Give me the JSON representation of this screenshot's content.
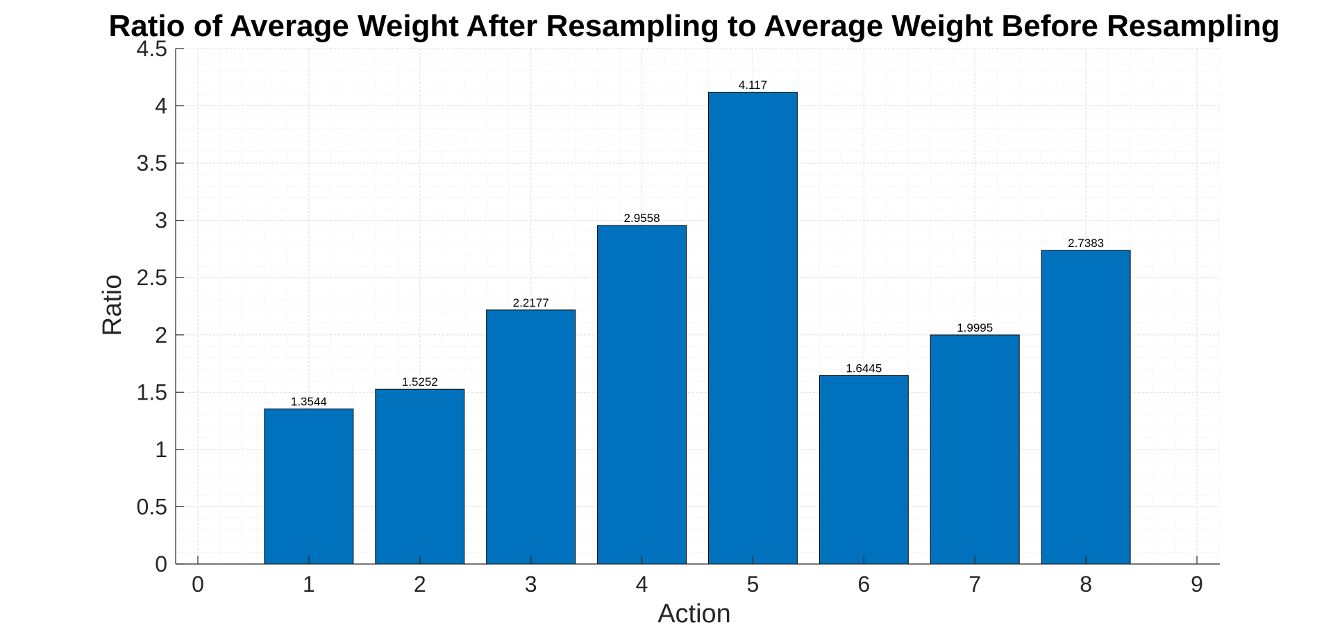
{
  "chart_data": {
    "type": "bar",
    "title": "Ratio of Average Weight After Resampling to Average Weight Before Resampling",
    "xlabel": "Action",
    "ylabel": "Ratio",
    "categories": [
      1,
      2,
      3,
      4,
      5,
      6,
      7,
      8
    ],
    "values": [
      1.3544,
      1.5252,
      2.2177,
      2.9558,
      4.117,
      1.6445,
      1.9995,
      2.7383
    ],
    "data_labels": [
      "1.3544",
      "1.5252",
      "2.2177",
      "2.9558",
      "4.117",
      "1.6445",
      "1.9995",
      "2.7383"
    ],
    "xlim": [
      0,
      9
    ],
    "ylim": [
      0,
      4.5
    ],
    "xticks": [
      "0",
      "1",
      "2",
      "3",
      "4",
      "5",
      "6",
      "7",
      "8",
      "9"
    ],
    "yticks": [
      "0",
      "0.5",
      "1",
      "1.5",
      "2",
      "2.5",
      "3",
      "3.5",
      "4",
      "4.5"
    ],
    "grid": true,
    "minor_grid": true,
    "bar_color": "#0072BD"
  }
}
